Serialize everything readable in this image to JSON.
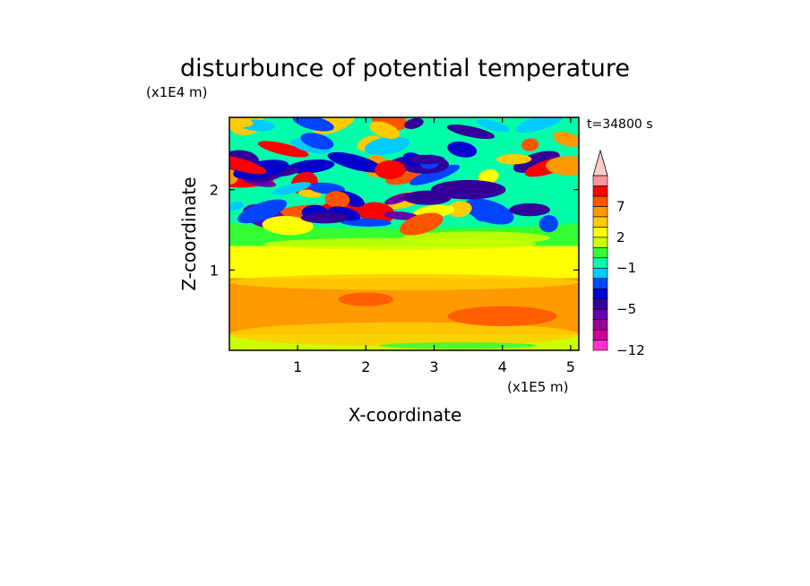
{
  "chart_data": {
    "type": "heatmap",
    "title": "disturbunce of potential temperature",
    "time_label": "t=34800 s",
    "xlabel": "X-coordinate",
    "ylabel": "Z-coordinate",
    "x_scale_label": "(x1E5 m)",
    "y_scale_label": "(x1E4 m)",
    "xlim": [
      0,
      5.12
    ],
    "ylim": [
      0,
      2.9
    ],
    "x_ticks": [
      1,
      2,
      3,
      4,
      5
    ],
    "x_tick_labels": [
      "1",
      "2",
      "3",
      "4",
      "5"
    ],
    "y_ticks": [
      1,
      2
    ],
    "y_tick_labels": [
      "1",
      "2"
    ],
    "colorbar": {
      "levels": [
        -12,
        -10,
        -8,
        -6,
        -5,
        -4,
        -3,
        -2,
        -1,
        0,
        1,
        2,
        3,
        5,
        7,
        9,
        11,
        13
      ],
      "tick_values": [
        -12,
        -5,
        -1,
        2,
        7
      ],
      "tick_labels": [
        "−12",
        "−5",
        "−1",
        "2",
        "7"
      ],
      "colors": [
        "#ff33cc",
        "#cc0099",
        "#990099",
        "#6600aa",
        "#330099",
        "#0000cc",
        "#0044ff",
        "#00ccff",
        "#00ffaa",
        "#33ff33",
        "#ccff00",
        "#ffff00",
        "#ffcc00",
        "#ff9900",
        "#ff5500",
        "#ff0000",
        "#ff9999",
        "#ffcccc"
      ]
    },
    "field_description_bands": [
      {
        "z_range": [
          0,
          0.2
        ],
        "dominant": "yellow/green"
      },
      {
        "z_range": [
          0.2,
          0.9
        ],
        "dominant": "orange"
      },
      {
        "z_range": [
          0.9,
          1.3
        ],
        "dominant": "yellow"
      },
      {
        "z_range": [
          1.3,
          1.6
        ],
        "dominant": "green/cyan"
      },
      {
        "z_range": [
          1.6,
          2.9
        ],
        "dominant": "alternating red/blue waves"
      }
    ]
  }
}
